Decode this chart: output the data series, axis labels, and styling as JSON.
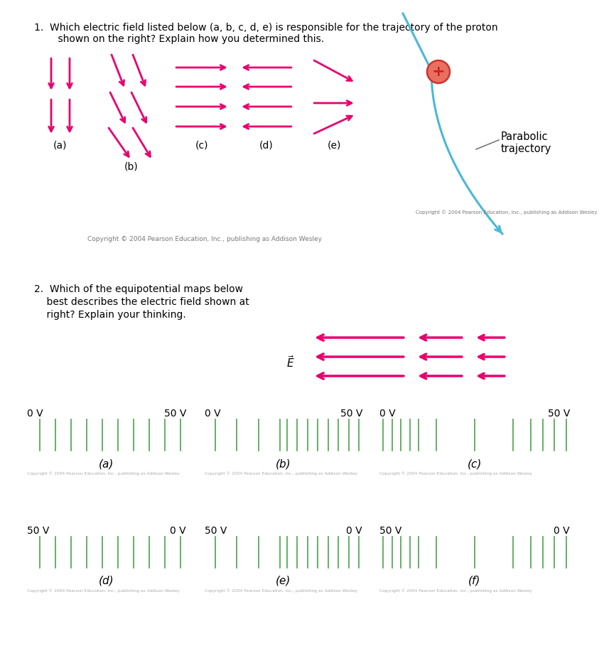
{
  "background_color": "#ffffff",
  "arrow_color": "#e8006e",
  "traj_color": "#4ab8d8",
  "proton_fill": "#e87060",
  "proton_edge": "#cc3333",
  "plus_color": "#cc2222",
  "green_line_color": "#3a9a3a",
  "label_line_color": "#888888",
  "q1_line1": "1.  Which electric field listed below (a, b, c, d, e) is responsible for the trajectory of the proton",
  "q1_line2": "    shown on the right? Explain how you determined this.",
  "q2_line1": "2.  Which of the equipotential maps below",
  "q2_line2": "    best describes the electric field shown at",
  "q2_line3": "    right? Explain your thinking.",
  "copyright_right": "Copyright © 2004 Pearson Education, Inc., publishing as Addison Wesley",
  "copyright_left": "Copyright © 2004 Pearson Education, Inc., publishing as Addison Wesley"
}
